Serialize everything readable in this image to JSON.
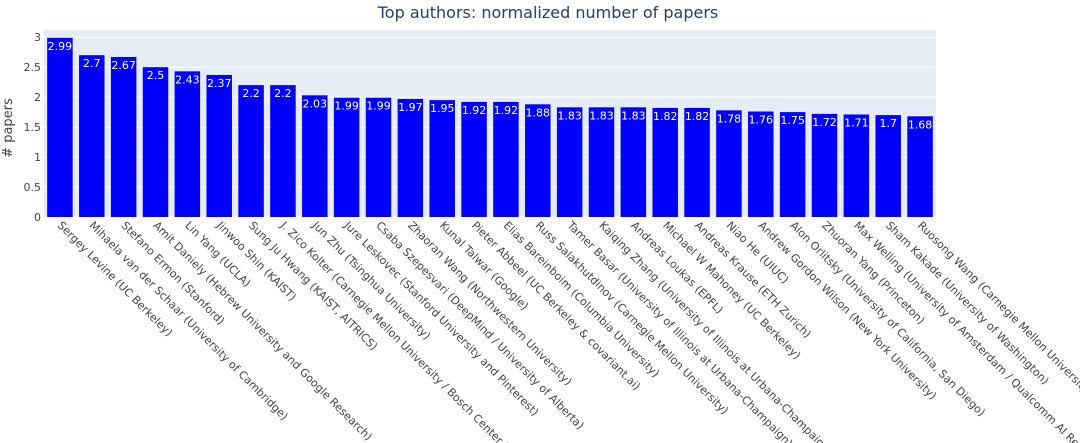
{
  "chart_data": {
    "type": "bar",
    "title": "Top authors: normalized number of papers",
    "xlabel": "",
    "ylabel": "# papers",
    "ylim": [
      0,
      3.12
    ],
    "yticks": [
      "0",
      "0.5",
      "1",
      "1.5",
      "2",
      "2.5",
      "3"
    ],
    "ytick_values": [
      0,
      0.5,
      1,
      1.5,
      2,
      2.5,
      3
    ],
    "grid": true,
    "bar_color": "#0000ff",
    "plot_bg": "#e5ecf6",
    "categories": [
      "Sergey Levine (UC Berkeley)",
      "Mihaela van der Schaar (University of Cambridge)",
      "Stefano Ermon (Stanford)",
      "Amit Daniely (Hebrew University and Google Research)",
      "Lin Yang (UCLA)",
      "Jinwoo Shin (KAIST)",
      "Sung Ju Hwang (KAIST, AITRICS)",
      "J. Zico Kolter (Carnegie Mellon University / Bosch Center for",
      "Jun Zhu (Tsinghua University)",
      "Jure Leskovec (Stanford University and Pinterest)",
      "Csaba Szepesvari (DeepMind / University of Alberta)",
      "Zhaoran Wang (Northwestern University)",
      "Kunal Talwar (Google)",
      "Pieter Abbeel (UC Berkeley & covariant.ai)",
      "Elias Bareinboim (Columbia University)",
      "Russ Salakhutdinov (Carnegie Mellon University)",
      "Tamer Basar (University of Illinois at Urbana-Champaign)",
      "Kaiqing Zhang (University of Illinois at Urbana-Champaign (",
      "Andreas Loukas (EPFL)",
      "Michael W Mahoney (UC Berkeley)",
      "Andreas Krause (ETH Zurich)",
      "Niao He (UIUC)",
      "Andrew Gordon Wilson (New York University)",
      "Alon Orlitsky (University of California, San Diego)",
      "Zhuoran Yang (Princeton)",
      "Max Welling (University of Amsterdam / Qualcomm AI Rese",
      "Sham Kakade (University of Washington)",
      "Ruosong Wang (Carnegie Mellon University)"
    ],
    "values": [
      2.99,
      2.7,
      2.67,
      2.5,
      2.43,
      2.37,
      2.2,
      2.2,
      2.03,
      1.99,
      1.99,
      1.97,
      1.95,
      1.92,
      1.92,
      1.88,
      1.83,
      1.83,
      1.83,
      1.82,
      1.82,
      1.78,
      1.76,
      1.75,
      1.72,
      1.71,
      1.7,
      1.68
    ],
    "labels": [
      "2.99",
      "2.7",
      "2.67",
      "2.5",
      "2.43",
      "2.37",
      "2.2",
      "2.2",
      "2.03",
      "1.99",
      "1.99",
      "1.97",
      "1.95",
      "1.92",
      "1.92",
      "1.88",
      "1.83",
      "1.83",
      "1.83",
      "1.82",
      "1.82",
      "1.78",
      "1.76",
      "1.75",
      "1.72",
      "1.71",
      "1.7",
      "1.68"
    ]
  }
}
